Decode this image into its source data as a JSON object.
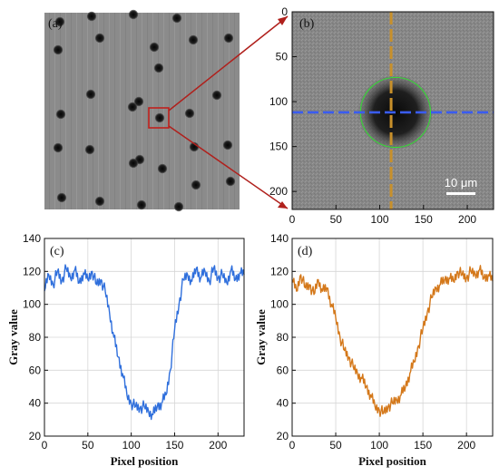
{
  "panels": {
    "a": {
      "label": "(a)"
    },
    "b": {
      "label": "(b)",
      "scale_bar": "10 μm"
    }
  },
  "chart_data": [
    {
      "panel": "(b)",
      "type": "heatmap",
      "xlim": [
        0,
        230
      ],
      "ylim": [
        220,
        0
      ],
      "x_ticks": [
        0,
        50,
        100,
        150,
        200
      ],
      "y_ticks": [
        0,
        50,
        100,
        150,
        200
      ],
      "grid": false,
      "circle": {
        "cx": 118,
        "cy": 112,
        "r": 40
      },
      "vertical_line_x": 113,
      "horizontal_line_y": 112
    },
    {
      "panel": "(c)",
      "type": "line",
      "xlabel": "Pixel position",
      "ylabel": "Gray value",
      "xlim": [
        0,
        230
      ],
      "ylim": [
        20,
        140
      ],
      "x_ticks": [
        0,
        50,
        100,
        150,
        200
      ],
      "y_ticks": [
        20,
        40,
        60,
        80,
        100,
        120,
        140
      ],
      "grid": true,
      "series": [
        {
          "color": "#2f6fdc",
          "points": [
            [
              0,
              108
            ],
            [
              5,
              118
            ],
            [
              10,
              112
            ],
            [
              15,
              120
            ],
            [
              20,
              114
            ],
            [
              25,
              122
            ],
            [
              30,
              116
            ],
            [
              35,
              121
            ],
            [
              40,
              113
            ],
            [
              45,
              119
            ],
            [
              50,
              115
            ],
            [
              55,
              120
            ],
            [
              60,
              112
            ],
            [
              65,
              115
            ],
            [
              70,
              108
            ],
            [
              75,
              95
            ],
            [
              80,
              80
            ],
            [
              85,
              68
            ],
            [
              90,
              58
            ],
            [
              95,
              45
            ],
            [
              100,
              40
            ],
            [
              105,
              38
            ],
            [
              110,
              37
            ],
            [
              115,
              38
            ],
            [
              120,
              35
            ],
            [
              125,
              33
            ],
            [
              130,
              38
            ],
            [
              135,
              40
            ],
            [
              140,
              45
            ],
            [
              145,
              60
            ],
            [
              150,
              85
            ],
            [
              155,
              100
            ],
            [
              160,
              115
            ],
            [
              165,
              118
            ],
            [
              170,
              114
            ],
            [
              175,
              122
            ],
            [
              180,
              116
            ],
            [
              185,
              120
            ],
            [
              190,
              114
            ],
            [
              195,
              122
            ],
            [
              200,
              116
            ],
            [
              205,
              118
            ],
            [
              210,
              113
            ],
            [
              215,
              121
            ],
            [
              220,
              115
            ],
            [
              225,
              119
            ],
            [
              230,
              118
            ]
          ]
        }
      ]
    },
    {
      "panel": "(d)",
      "type": "line",
      "xlabel": "Pixel position",
      "ylabel": "Gray value",
      "xlim": [
        0,
        230
      ],
      "ylim": [
        20,
        140
      ],
      "x_ticks": [
        0,
        50,
        100,
        150,
        200
      ],
      "y_ticks": [
        20,
        40,
        60,
        80,
        100,
        120,
        140
      ],
      "grid": true,
      "series": [
        {
          "color": "#d4781a",
          "points": [
            [
              0,
              115
            ],
            [
              5,
              108
            ],
            [
              10,
              118
            ],
            [
              15,
              110
            ],
            [
              20,
              112
            ],
            [
              25,
              106
            ],
            [
              30,
              115
            ],
            [
              35,
              108
            ],
            [
              40,
              110
            ],
            [
              45,
              100
            ],
            [
              50,
              92
            ],
            [
              55,
              80
            ],
            [
              60,
              72
            ],
            [
              65,
              68
            ],
            [
              70,
              62
            ],
            [
              75,
              58
            ],
            [
              80,
              55
            ],
            [
              85,
              50
            ],
            [
              90,
              45
            ],
            [
              95,
              38
            ],
            [
              100,
              36
            ],
            [
              105,
              34
            ],
            [
              110,
              38
            ],
            [
              115,
              40
            ],
            [
              120,
              42
            ],
            [
              125,
              45
            ],
            [
              130,
              50
            ],
            [
              135,
              58
            ],
            [
              140,
              65
            ],
            [
              145,
              75
            ],
            [
              150,
              85
            ],
            [
              155,
              95
            ],
            [
              160,
              104
            ],
            [
              165,
              110
            ],
            [
              170,
              112
            ],
            [
              175,
              115
            ],
            [
              180,
              116
            ],
            [
              185,
              114
            ],
            [
              190,
              120
            ],
            [
              195,
              118
            ],
            [
              200,
              116
            ],
            [
              205,
              120
            ],
            [
              210,
              118
            ],
            [
              215,
              121
            ],
            [
              220,
              116
            ],
            [
              225,
              118
            ],
            [
              230,
              114
            ]
          ]
        }
      ]
    }
  ]
}
